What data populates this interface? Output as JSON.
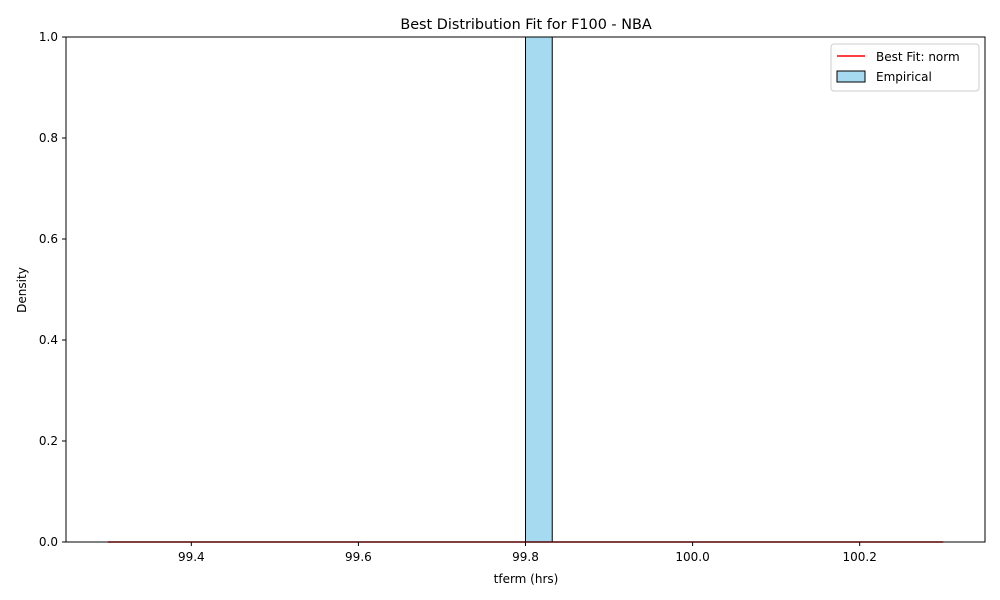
{
  "chart_data": {
    "type": "bar",
    "title": "Best Distribution Fit for F100 - NBA",
    "xlabel": "tferm (hrs)",
    "ylabel": "Density",
    "xlim": [
      99.25,
      100.35
    ],
    "ylim": [
      0,
      1.0
    ],
    "xticks": [
      99.4,
      99.6,
      99.8,
      100.0,
      100.2
    ],
    "xtick_labels": [
      "99.4",
      "99.6",
      "99.8",
      "100.0",
      "100.2"
    ],
    "yticks": [
      0.0,
      0.2,
      0.4,
      0.6,
      0.8,
      1.0
    ],
    "ytick_labels": [
      "0.0",
      "0.2",
      "0.4",
      "0.6",
      "0.8",
      "1.0"
    ],
    "grid": false,
    "legend_position": "top-right",
    "series": [
      {
        "name": "Best Fit: norm",
        "kind": "line",
        "color": "#ff0000",
        "x": [
          99.3,
          100.3
        ],
        "y": [
          0.0,
          0.0
        ]
      },
      {
        "name": "Empirical",
        "kind": "histogram",
        "color": "#87ceeb",
        "edge_color": "#000000",
        "bins": [
          {
            "x0": 99.3,
            "x1": 99.8,
            "density": 0.0
          },
          {
            "x0": 99.8,
            "x1": 99.832,
            "density": 1.0
          },
          {
            "x0": 99.832,
            "x1": 100.3,
            "density": 0.0
          }
        ]
      }
    ]
  }
}
